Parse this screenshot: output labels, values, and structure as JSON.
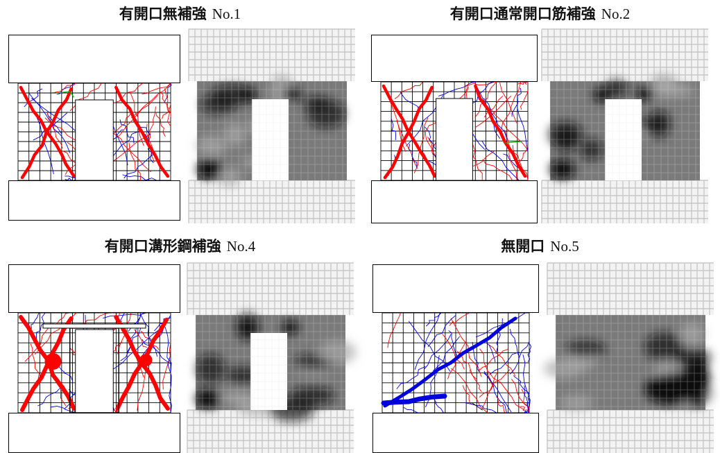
{
  "colors": {
    "crack_red": "#ff0000",
    "crack_blue": "#0000dd",
    "crack_green": "#00b000",
    "contour_dark": "#111111",
    "contour_mid": "#8a8a8a",
    "mesh_light": "#c8c8c8"
  },
  "specimens": [
    {
      "title": "有開口無補強",
      "number": "No.1",
      "opening": "center",
      "reinforcement": "none"
    },
    {
      "title": "有開口通常開口筋補強",
      "number": "No.2",
      "opening": "center",
      "reinforcement": "opening-bars"
    },
    {
      "title": "有開口溝形鋼補強",
      "number": "No.4",
      "opening": "center",
      "reinforcement": "channel-steel"
    },
    {
      "title": "無開口",
      "number": "No.5",
      "opening": "none",
      "reinforcement": "none"
    }
  ]
}
